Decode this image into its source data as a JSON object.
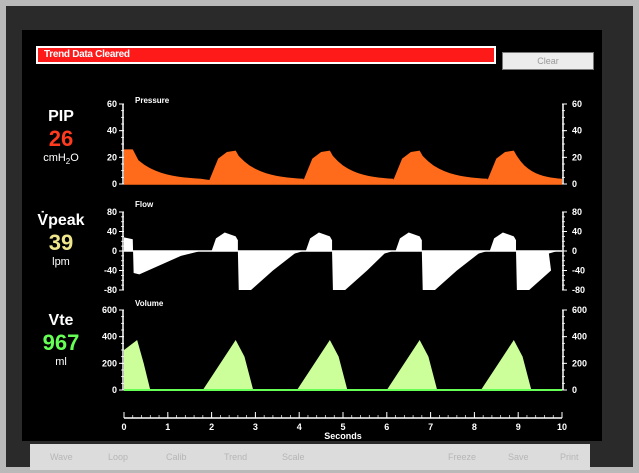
{
  "alarm": {
    "message": "Trend Data Cleared",
    "clear_label": "Clear"
  },
  "parameters": [
    {
      "name": "PIP",
      "value": "26",
      "unit_main": "cmH",
      "unit_sub": "2",
      "unit_tail": "O",
      "color": "#ff3b1f"
    },
    {
      "name": "V̇peak",
      "value": "39",
      "unit_main": "lpm",
      "unit_sub": "",
      "unit_tail": "",
      "color": "#f0e68c"
    },
    {
      "name": "Vte",
      "value": "967",
      "unit_main": "ml",
      "unit_sub": "",
      "unit_tail": "",
      "color": "#66ff55"
    }
  ],
  "waveforms": {
    "pressure": {
      "title": "Pressure",
      "ticks": [
        "60",
        "40",
        "20",
        "0"
      ],
      "color": "#ff6b1a",
      "ylim": [
        0,
        60
      ]
    },
    "flow": {
      "title": "Flow",
      "ticks": [
        "80",
        "40",
        "0",
        "-40",
        "-80"
      ],
      "color": "#ffffff",
      "ylim": [
        -80,
        80
      ]
    },
    "volume": {
      "title": "Volume",
      "ticks": [
        "600",
        "400",
        "200",
        "0"
      ],
      "color": "#ccff99",
      "ylim": [
        0,
        600
      ]
    },
    "x_axis": {
      "label": "Seconds",
      "ticks": [
        "0",
        "1",
        "2",
        "3",
        "4",
        "5",
        "6",
        "7",
        "8",
        "9",
        "10"
      ]
    },
    "breath_starts": [
      2.0,
      4.15,
      6.2,
      8.35
    ]
  },
  "softkeys": [
    "Wave",
    "Loop",
    "Calib",
    "Trend",
    "Scale",
    "Freeze",
    "Save",
    "Print"
  ]
}
